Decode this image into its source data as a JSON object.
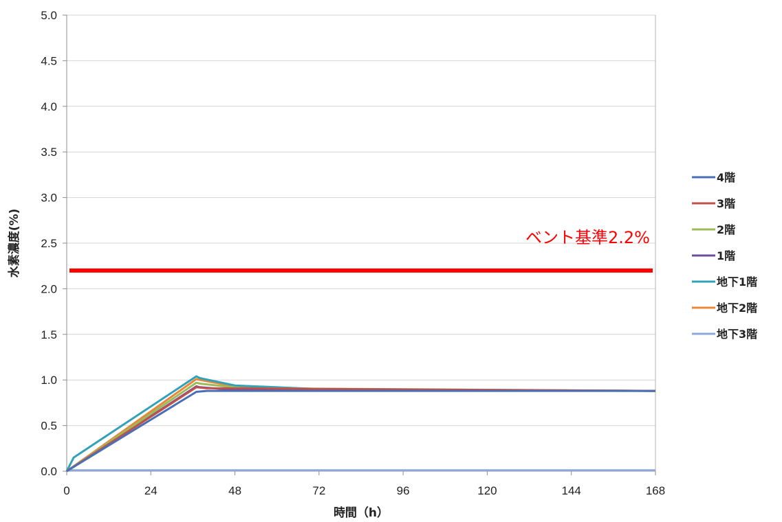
{
  "chart_data": {
    "type": "line",
    "title": "",
    "xlabel": "時間（h）",
    "ylabel": "水素濃度(%)",
    "xlim": [
      0,
      168
    ],
    "ylim": [
      0,
      5.0
    ],
    "x_ticks": [
      0,
      24,
      48,
      72,
      96,
      120,
      144,
      168
    ],
    "y_ticks": [
      "0.0",
      "0.5",
      "1.0",
      "1.5",
      "2.0",
      "2.5",
      "3.0",
      "3.5",
      "4.0",
      "4.5",
      "5.0"
    ],
    "grid": "horizontal",
    "legend_position": "right",
    "reference_line": {
      "label": "ベント基準2.2%",
      "value": 2.2,
      "color": "#ff0000"
    },
    "series": [
      {
        "name": "4階",
        "color": "#4a6fb5",
        "x": [
          0,
          37,
          40,
          168
        ],
        "y": [
          0,
          0.87,
          0.88,
          0.88
        ]
      },
      {
        "name": "3階",
        "color": "#c0504d",
        "x": [
          0,
          37,
          40,
          168
        ],
        "y": [
          0,
          0.92,
          0.91,
          0.88
        ]
      },
      {
        "name": "2階",
        "color": "#9bbb59",
        "x": [
          0,
          37,
          38,
          50,
          168
        ],
        "y": [
          0,
          0.97,
          0.96,
          0.91,
          0.88
        ]
      },
      {
        "name": "1階",
        "color": "#6b4e9b",
        "x": [
          0,
          37,
          38,
          48,
          168
        ],
        "y": [
          0,
          0.93,
          0.92,
          0.89,
          0.88
        ]
      },
      {
        "name": "地下1階",
        "color": "#31a1b8",
        "x": [
          0,
          2,
          37,
          38,
          48,
          72,
          96,
          168
        ],
        "y": [
          0,
          0.15,
          1.04,
          1.02,
          0.94,
          0.9,
          0.89,
          0.88
        ]
      },
      {
        "name": "地下2階",
        "color": "#e8873a",
        "x": [
          0,
          37,
          38,
          48,
          72,
          96,
          168
        ],
        "y": [
          0,
          1.01,
          1.0,
          0.93,
          0.9,
          0.89,
          0.88
        ]
      },
      {
        "name": "地下3階",
        "color": "#8fa6d8",
        "x": [
          0,
          168
        ],
        "y": [
          0.01,
          0.01
        ]
      }
    ]
  }
}
